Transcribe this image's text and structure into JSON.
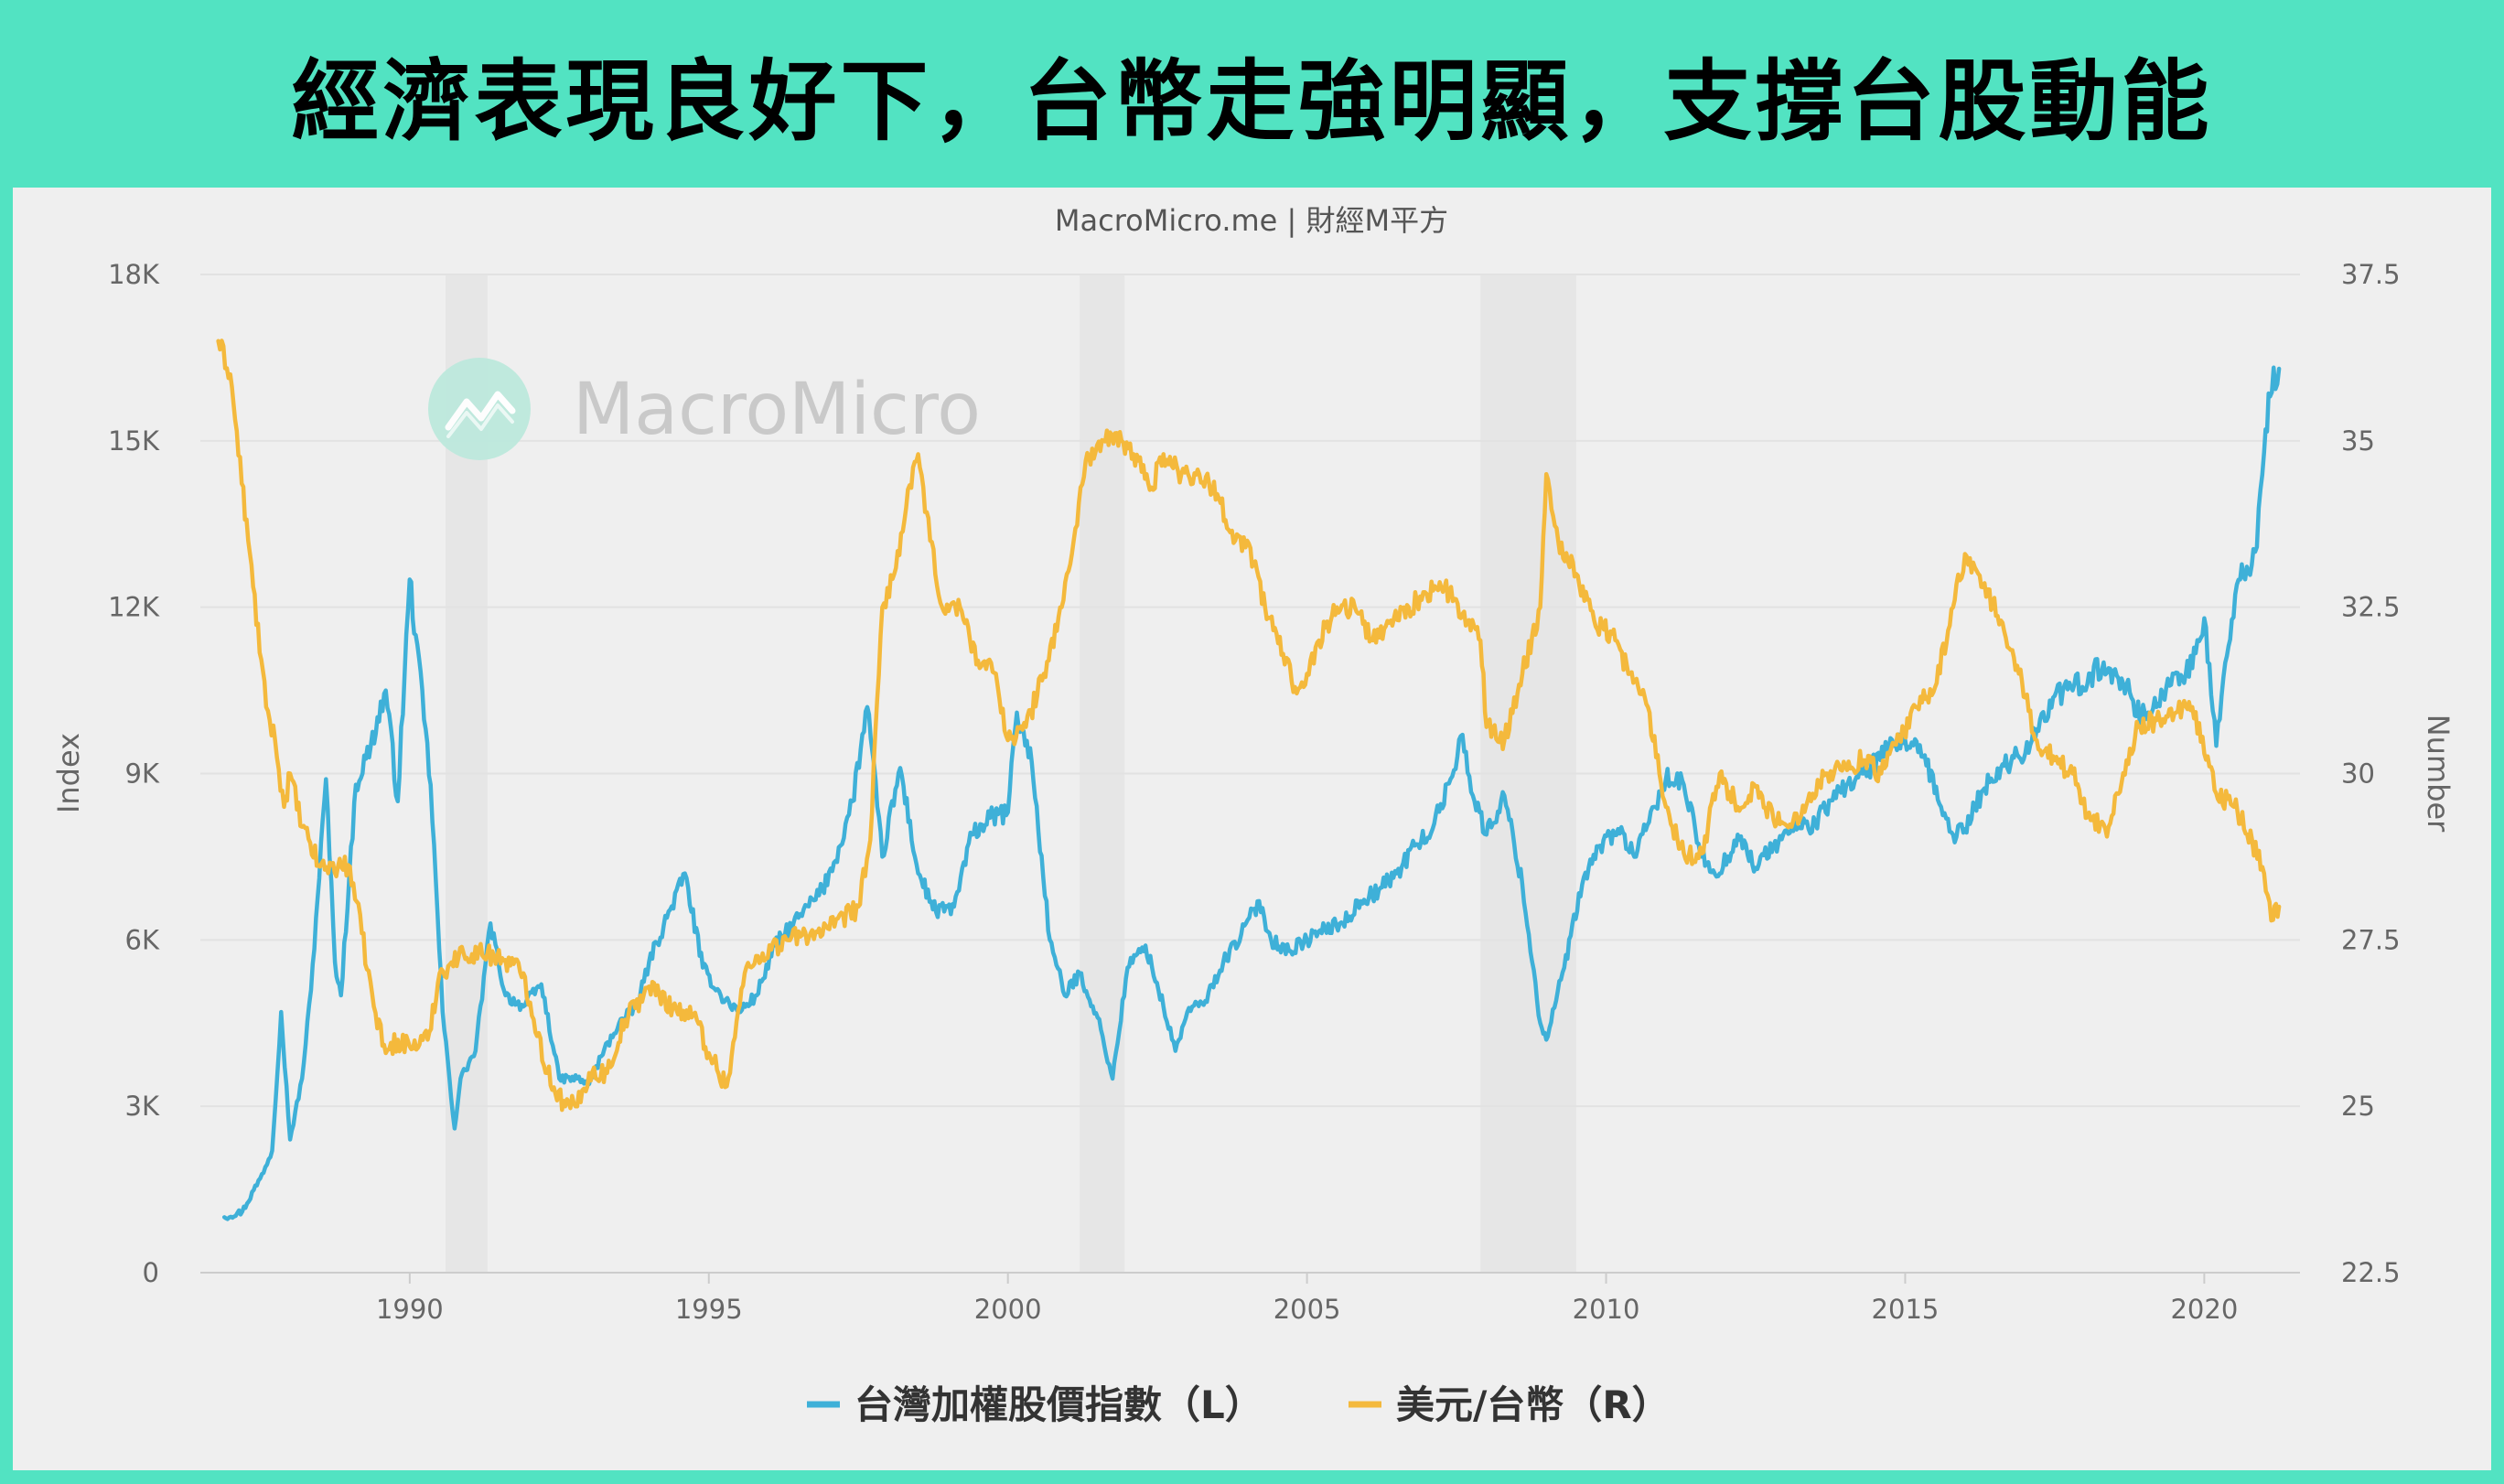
{
  "banner": {
    "title": "經濟表現良好下，台幣走強明顯，支撐台股動能"
  },
  "watermark": {
    "text": "MacroMicro"
  },
  "chart_data": {
    "type": "line",
    "subtitle": "MacroMicro.me | 財經M平方",
    "x_ticks": [
      "1990",
      "1995",
      "2000",
      "2005",
      "2010",
      "2015",
      "2020"
    ],
    "x_tick_values": [
      1990,
      1995,
      2000,
      2005,
      2010,
      2015,
      2020
    ],
    "xlim": [
      1986.5,
      2021.6
    ],
    "y_left": {
      "label": "Index",
      "ylim": [
        0,
        18000
      ],
      "ticks": [
        0,
        3000,
        6000,
        9000,
        12000,
        15000,
        18000
      ],
      "tick_labels": [
        "0",
        "3K",
        "6K",
        "9K",
        "12K",
        "15K",
        "18K"
      ]
    },
    "y_right": {
      "label": "Number",
      "ylim": [
        22.5,
        37.5
      ],
      "ticks": [
        22.5,
        25,
        27.5,
        30,
        32.5,
        35,
        37.5
      ],
      "tick_labels": [
        "22.5",
        "25",
        "27.5",
        "30",
        "32.5",
        "35",
        "37.5"
      ]
    },
    "recessions": [
      [
        1990.6,
        1991.3
      ],
      [
        2001.2,
        2001.95
      ],
      [
        2007.9,
        2009.5
      ]
    ],
    "grid": true,
    "legend_position": "bottom",
    "series": [
      {
        "name": "台灣加權股價指數（L）",
        "axis": "left",
        "color": "#3eb0d8",
        "x": [
          1986.9,
          1987.2,
          1987.5,
          1987.7,
          1987.85,
          1988.0,
          1988.2,
          1988.35,
          1988.6,
          1988.75,
          1988.85,
          1989.1,
          1989.35,
          1989.6,
          1989.8,
          1990.0,
          1990.1,
          1990.35,
          1990.55,
          1990.75,
          1990.85,
          1991.1,
          1991.35,
          1991.6,
          1991.9,
          1992.2,
          1992.5,
          1992.8,
          1993.0,
          1993.2,
          1993.5,
          1993.8,
          1994.0,
          1994.3,
          1994.6,
          1994.9,
          1995.2,
          1995.5,
          1995.8,
          1996.1,
          1996.5,
          1996.9,
          1997.2,
          1997.4,
          1997.65,
          1997.9,
          1998.2,
          1998.5,
          1998.8,
          1999.1,
          1999.4,
          1999.7,
          2000.0,
          2000.15,
          2000.4,
          2000.7,
          2000.95,
          2001.2,
          2001.5,
          2001.75,
          2002.0,
          2002.3,
          2002.6,
          2002.8,
          2003.0,
          2003.3,
          2003.6,
          2003.9,
          2004.2,
          2004.4,
          2004.7,
          2005.0,
          2005.3,
          2005.6,
          2005.9,
          2006.2,
          2006.5,
          2006.8,
          2007.1,
          2007.4,
          2007.6,
          2007.8,
          2008.0,
          2008.3,
          2008.6,
          2008.9,
          2009.0,
          2009.3,
          2009.6,
          2009.9,
          2010.2,
          2010.5,
          2010.8,
          2011.0,
          2011.3,
          2011.6,
          2011.9,
          2012.2,
          2012.5,
          2012.8,
          2013.1,
          2013.5,
          2013.9,
          2014.3,
          2014.7,
          2015.0,
          2015.3,
          2015.6,
          2015.8,
          2016.0,
          2016.3,
          2016.6,
          2016.9,
          2017.2,
          2017.5,
          2017.8,
          2018.1,
          2018.4,
          2018.7,
          2018.95,
          2019.2,
          2019.5,
          2019.8,
          2020.0,
          2020.2,
          2020.35,
          2020.6,
          2020.85,
          2021.0,
          2021.1,
          2021.25
        ],
        "values": [
          1000,
          1100,
          1700,
          2200,
          4700,
          2400,
          3500,
          5100,
          8900,
          5600,
          5000,
          8800,
          9500,
          10500,
          8500,
          12500,
          11500,
          8800,
          4700,
          2600,
          3500,
          4000,
          6300,
          5000,
          4800,
          5200,
          3500,
          3500,
          3400,
          3900,
          4500,
          4800,
          5600,
          6400,
          7200,
          5500,
          5000,
          4700,
          5000,
          5900,
          6400,
          6900,
          7700,
          8500,
          10200,
          7500,
          9100,
          7200,
          6500,
          6600,
          7900,
          8200,
          8300,
          10100,
          9200,
          6000,
          5000,
          5400,
          4600,
          3500,
          5500,
          5900,
          4800,
          4000,
          4700,
          4900,
          5600,
          6100,
          6700,
          6000,
          5800,
          6000,
          6200,
          6300,
          6700,
          6900,
          7200,
          7700,
          8000,
          8900,
          9700,
          8500,
          7900,
          8600,
          7000,
          4500,
          4200,
          5500,
          7000,
          7700,
          8000,
          7500,
          8400,
          8900,
          8800,
          7500,
          7200,
          7900,
          7300,
          7700,
          8000,
          8100,
          8700,
          9000,
          9400,
          9600,
          9300,
          8400,
          7900,
          8000,
          8700,
          9100,
          9300,
          9800,
          10400,
          10500,
          10800,
          10900,
          10600,
          10000,
          10200,
          10800,
          10900,
          11800,
          9500,
          11000,
          12500,
          13000,
          14800,
          15800,
          16300
        ]
      },
      {
        "name": "美元/台幣（R）",
        "axis": "right",
        "color": "#f4b93c",
        "x": [
          1986.8,
          1987.0,
          1987.3,
          1987.6,
          1987.75,
          1987.9,
          1988.0,
          1988.2,
          1988.5,
          1988.8,
          1989.0,
          1989.2,
          1989.4,
          1989.6,
          1989.8,
          1990.0,
          1990.3,
          1990.5,
          1990.9,
          1991.3,
          1991.6,
          1991.9,
          1992.3,
          1992.6,
          1992.8,
          1993.0,
          1993.3,
          1993.6,
          1994.0,
          1994.4,
          1994.8,
          1995.0,
          1995.3,
          1995.6,
          1995.9,
          1996.3,
          1996.7,
          1997.1,
          1997.5,
          1997.7,
          1997.9,
          1998.1,
          1998.3,
          1998.5,
          1998.7,
          1998.9,
          1999.2,
          1999.5,
          1999.8,
          2000.0,
          2000.3,
          2000.6,
          2000.9,
          2001.1,
          2001.3,
          2001.6,
          2001.9,
          2002.1,
          2002.4,
          2002.6,
          2002.9,
          2003.2,
          2003.5,
          2003.8,
          2004.0,
          2004.3,
          2004.6,
          2004.8,
          2005.0,
          2005.2,
          2005.5,
          2005.8,
          2006.1,
          2006.4,
          2006.7,
          2007.0,
          2007.3,
          2007.6,
          2007.9,
          2008.0,
          2008.3,
          2008.6,
          2008.9,
          2009.0,
          2009.2,
          2009.5,
          2009.8,
          2010.1,
          2010.4,
          2010.7,
          2011.0,
          2011.3,
          2011.6,
          2011.9,
          2012.2,
          2012.5,
          2012.8,
          2013.1,
          2013.4,
          2013.7,
          2014.0,
          2014.3,
          2014.6,
          2014.9,
          2015.2,
          2015.5,
          2015.8,
          2016.0,
          2016.3,
          2016.6,
          2016.9,
          2017.2,
          2017.5,
          2017.8,
          2018.1,
          2018.4,
          2018.7,
          2018.9,
          2019.2,
          2019.5,
          2019.8,
          2020.0,
          2020.2,
          2020.5,
          2020.8,
          2021.0,
          2021.15,
          2021.25
        ],
        "values": [
          36.5,
          36.0,
          33.5,
          31.0,
          30.5,
          29.5,
          30.0,
          29.2,
          28.6,
          28.6,
          28.6,
          27.6,
          26.5,
          25.8,
          26.0,
          25.9,
          26.0,
          27.0,
          27.3,
          27.3,
          27.2,
          27.0,
          25.5,
          25.0,
          25.0,
          25.5,
          25.5,
          26.3,
          26.8,
          26.5,
          26.3,
          25.8,
          25.3,
          27.0,
          27.3,
          27.5,
          27.6,
          27.7,
          28.0,
          29.0,
          32.5,
          33.0,
          34.0,
          34.8,
          33.5,
          32.5,
          32.5,
          31.7,
          31.5,
          30.5,
          30.7,
          31.5,
          32.5,
          33.5,
          34.7,
          35.0,
          35.0,
          34.8,
          34.3,
          34.8,
          34.5,
          34.5,
          34.2,
          33.5,
          33.5,
          32.5,
          31.8,
          31.3,
          31.5,
          32.0,
          32.5,
          32.5,
          32.0,
          32.3,
          32.5,
          32.7,
          32.8,
          32.4,
          32.0,
          30.7,
          30.5,
          31.5,
          32.5,
          34.5,
          33.5,
          33.0,
          32.3,
          32.1,
          31.5,
          31.0,
          29.5,
          28.8,
          28.8,
          30.0,
          29.5,
          29.8,
          29.3,
          29.2,
          29.7,
          30.0,
          30.1,
          30.2,
          30.0,
          30.5,
          31.0,
          31.3,
          32.5,
          33.3,
          32.8,
          32.3,
          31.5,
          30.5,
          30.2,
          30.0,
          29.3,
          29.2,
          30.2,
          30.7,
          30.8,
          30.9,
          31.0,
          30.3,
          29.7,
          29.5,
          29.0,
          28.5,
          27.8,
          28.0
        ]
      }
    ]
  }
}
